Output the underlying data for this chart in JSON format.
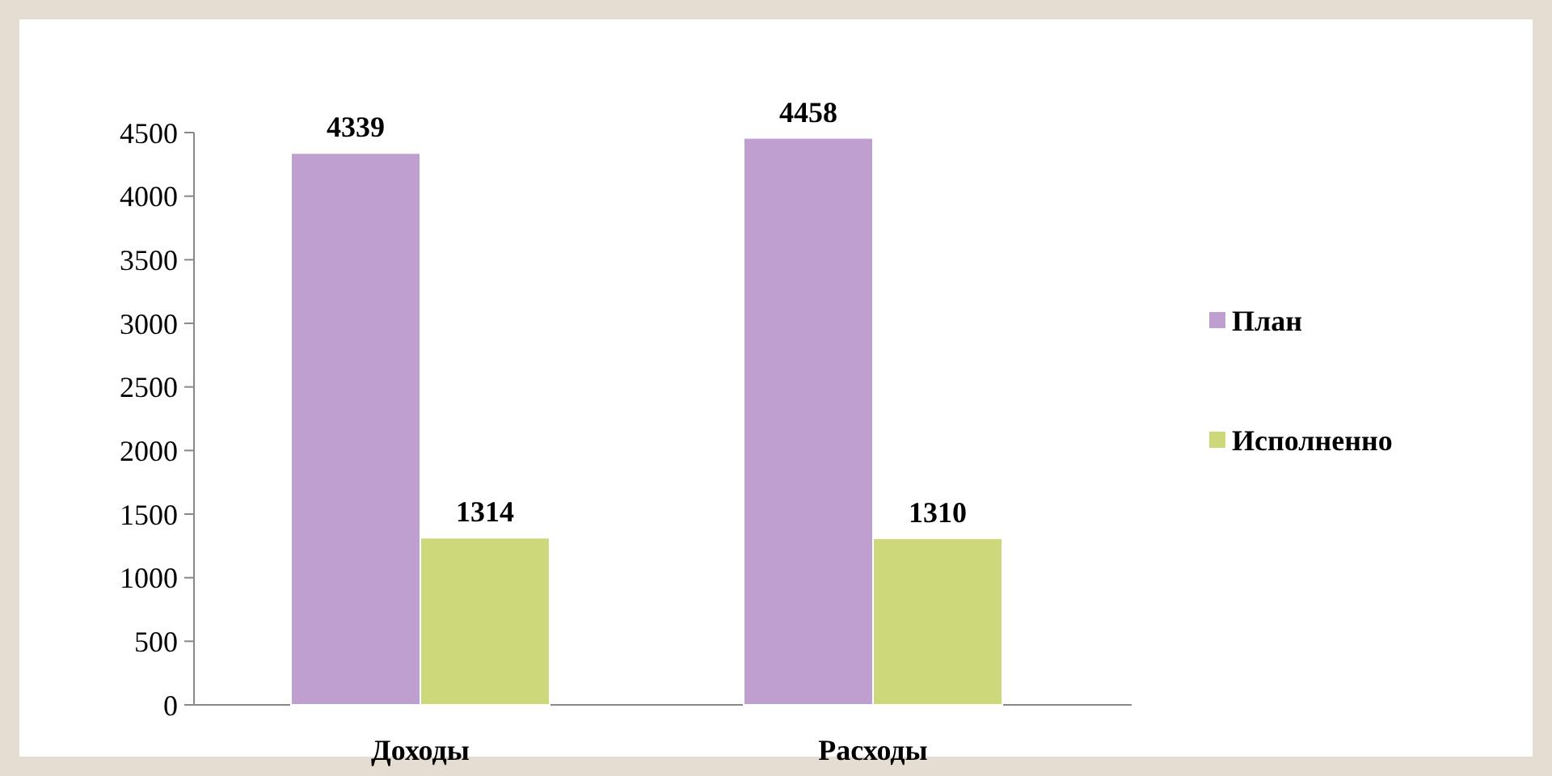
{
  "chart_data": {
    "type": "bar",
    "categories": [
      "Доходы",
      "Расходы"
    ],
    "series": [
      {
        "name": "План",
        "color": "#bf9fd0",
        "values": [
          4339,
          4458
        ]
      },
      {
        "name": "Исполненно",
        "color": "#cdd87a",
        "values": [
          1314,
          1310
        ]
      }
    ],
    "ylim": [
      0,
      4500
    ],
    "yticks": [
      0,
      500,
      1000,
      1500,
      2000,
      2500,
      3000,
      3500,
      4000,
      4500
    ],
    "grid": false,
    "legend": "right",
    "data_labels": true
  }
}
